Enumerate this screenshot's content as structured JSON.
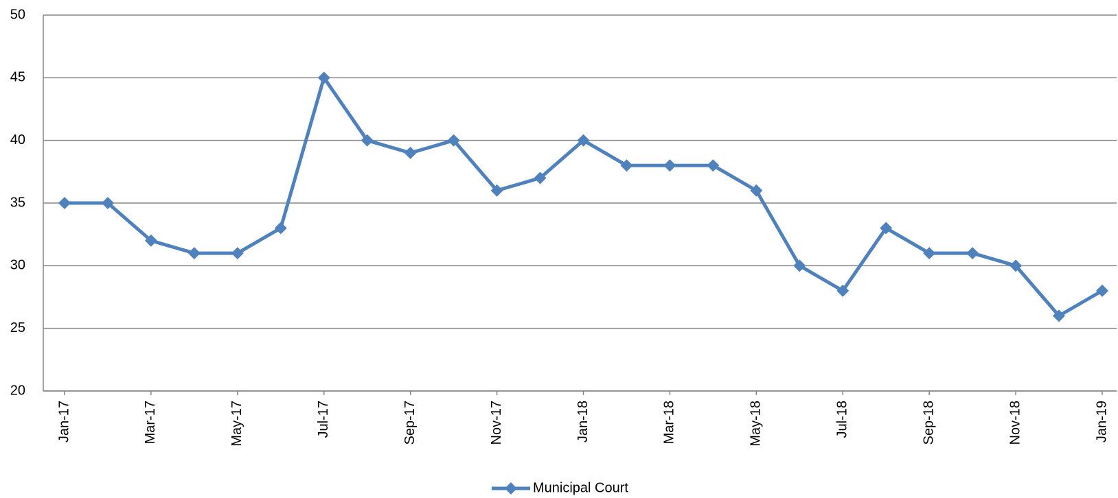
{
  "chart_data": {
    "type": "line",
    "categories": [
      "Jan-17",
      null,
      "Mar-17",
      null,
      "May-17",
      null,
      "Jul-17",
      null,
      "Sep-17",
      null,
      "Nov-17",
      null,
      "Jan-18",
      null,
      "Mar-18",
      null,
      "May-18",
      null,
      "Jul-18",
      null,
      "Sep-18",
      null,
      "Nov-18",
      null,
      "Jan-19"
    ],
    "series": [
      {
        "name": "Municipal Court",
        "color": "#4f81bd",
        "values": [
          35,
          35,
          32,
          31,
          31,
          33,
          45,
          40,
          39,
          40,
          36,
          37,
          40,
          38,
          38,
          38,
          36,
          30,
          28,
          33,
          31,
          31,
          30,
          26,
          28
        ]
      }
    ],
    "ylim": [
      20,
      50
    ],
    "yticks": [
      20,
      25,
      30,
      35,
      40,
      45,
      50
    ],
    "grid": true,
    "legend": "bottom"
  }
}
